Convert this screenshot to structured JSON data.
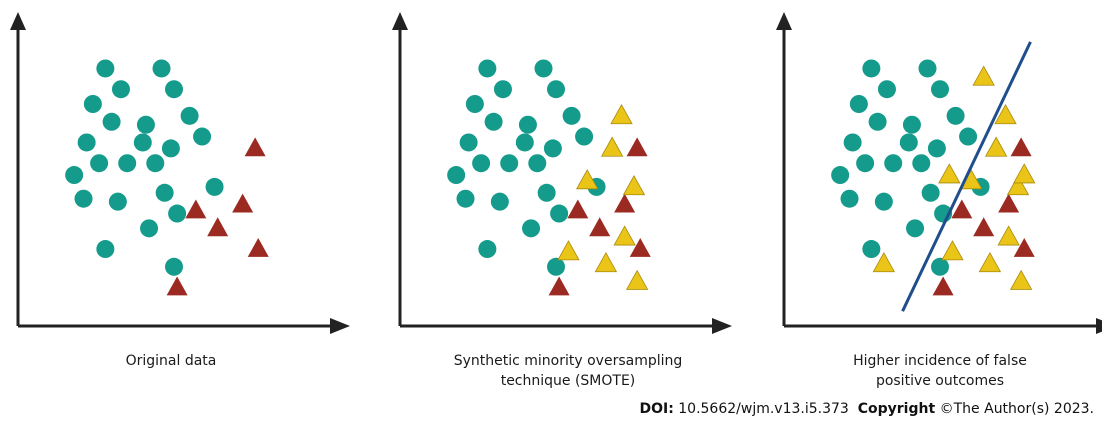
{
  "colors": {
    "majority": "#159B8C",
    "minority_original": "#9B2A22",
    "minority_synthetic": "#EAC416",
    "triangle_stroke": "#A88A10",
    "axis": "#222222",
    "boundary": "#1F4E8C"
  },
  "panels": [
    {
      "caption": "Original data",
      "caption_line2": "",
      "majority_points": [
        [
          2.8,
          8.7
        ],
        [
          4.6,
          8.7
        ],
        [
          3.3,
          8.0
        ],
        [
          5.0,
          8.0
        ],
        [
          2.4,
          7.5
        ],
        [
          5.5,
          7.1
        ],
        [
          3.0,
          6.9
        ],
        [
          4.1,
          6.8
        ],
        [
          5.9,
          6.4
        ],
        [
          2.2,
          6.2
        ],
        [
          4.0,
          6.2
        ],
        [
          4.9,
          6.0
        ],
        [
          2.6,
          5.5
        ],
        [
          3.5,
          5.5
        ],
        [
          4.4,
          5.5
        ],
        [
          1.8,
          5.1
        ],
        [
          6.3,
          4.7
        ],
        [
          2.1,
          4.3
        ],
        [
          3.2,
          4.2
        ],
        [
          4.7,
          4.5
        ],
        [
          5.1,
          3.8
        ],
        [
          4.2,
          3.3
        ],
        [
          2.8,
          2.6
        ],
        [
          5.0,
          2.0
        ]
      ],
      "minority_original_points": [
        [
          7.6,
          6.0
        ],
        [
          5.7,
          3.9
        ],
        [
          7.2,
          4.1
        ],
        [
          6.4,
          3.3
        ],
        [
          7.7,
          2.6
        ],
        [
          5.1,
          1.3
        ]
      ],
      "synthetic_points": [],
      "boundary": null
    },
    {
      "caption": "Synthetic minority oversampling",
      "caption_line2": "technique (SMOTE)",
      "majority_points": [
        [
          2.8,
          8.7
        ],
        [
          4.6,
          8.7
        ],
        [
          3.3,
          8.0
        ],
        [
          5.0,
          8.0
        ],
        [
          2.4,
          7.5
        ],
        [
          5.5,
          7.1
        ],
        [
          3.0,
          6.9
        ],
        [
          4.1,
          6.8
        ],
        [
          5.9,
          6.4
        ],
        [
          2.2,
          6.2
        ],
        [
          4.0,
          6.2
        ],
        [
          4.9,
          6.0
        ],
        [
          2.6,
          5.5
        ],
        [
          3.5,
          5.5
        ],
        [
          4.4,
          5.5
        ],
        [
          1.8,
          5.1
        ],
        [
          6.3,
          4.7
        ],
        [
          2.1,
          4.3
        ],
        [
          3.2,
          4.2
        ],
        [
          4.7,
          4.5
        ],
        [
          5.1,
          3.8
        ],
        [
          4.2,
          3.3
        ],
        [
          2.8,
          2.6
        ],
        [
          5.0,
          2.0
        ]
      ],
      "minority_original_points": [
        [
          7.6,
          6.0
        ],
        [
          5.7,
          3.9
        ],
        [
          7.2,
          4.1
        ],
        [
          6.4,
          3.3
        ],
        [
          7.7,
          2.6
        ],
        [
          5.1,
          1.3
        ]
      ],
      "synthetic_points": [
        [
          7.1,
          7.1
        ],
        [
          6.8,
          6.0
        ],
        [
          6.0,
          4.9
        ],
        [
          7.5,
          4.7
        ],
        [
          7.2,
          3.0
        ],
        [
          5.4,
          2.5
        ],
        [
          6.6,
          2.1
        ],
        [
          7.6,
          1.5
        ]
      ],
      "boundary": null
    },
    {
      "caption": "Higher incidence of false",
      "caption_line2": "positive outcomes",
      "majority_points": [
        [
          2.8,
          8.7
        ],
        [
          4.6,
          8.7
        ],
        [
          3.3,
          8.0
        ],
        [
          5.0,
          8.0
        ],
        [
          2.4,
          7.5
        ],
        [
          5.5,
          7.1
        ],
        [
          3.0,
          6.9
        ],
        [
          4.1,
          6.8
        ],
        [
          5.9,
          6.4
        ],
        [
          2.2,
          6.2
        ],
        [
          4.0,
          6.2
        ],
        [
          4.9,
          6.0
        ],
        [
          2.6,
          5.5
        ],
        [
          3.5,
          5.5
        ],
        [
          4.4,
          5.5
        ],
        [
          1.8,
          5.1
        ],
        [
          6.3,
          4.7
        ],
        [
          2.1,
          4.3
        ],
        [
          3.2,
          4.2
        ],
        [
          4.7,
          4.5
        ],
        [
          5.1,
          3.8
        ],
        [
          4.2,
          3.3
        ],
        [
          2.8,
          2.6
        ],
        [
          5.0,
          2.0
        ]
      ],
      "minority_original_points": [
        [
          7.6,
          6.0
        ],
        [
          5.7,
          3.9
        ],
        [
          7.2,
          4.1
        ],
        [
          6.4,
          3.3
        ],
        [
          7.7,
          2.6
        ],
        [
          5.1,
          1.3
        ]
      ],
      "synthetic_points": [
        [
          7.1,
          7.1
        ],
        [
          6.8,
          6.0
        ],
        [
          6.0,
          4.9
        ],
        [
          7.5,
          4.7
        ],
        [
          7.2,
          3.0
        ],
        [
          5.4,
          2.5
        ],
        [
          6.6,
          2.1
        ],
        [
          7.6,
          1.5
        ],
        [
          6.4,
          8.4
        ],
        [
          5.3,
          5.1
        ],
        [
          7.7,
          5.1
        ],
        [
          3.2,
          2.1
        ]
      ],
      "boundary": [
        [
          3.8,
          0.5
        ],
        [
          7.9,
          9.6
        ]
      ]
    }
  ],
  "footer": {
    "doi_label": "DOI:",
    "doi_value": " 10.5662/wjm.v13.i5.373",
    "copyright_label": "Copyright",
    "copyright_value": " ©The Author(s) 2023."
  }
}
